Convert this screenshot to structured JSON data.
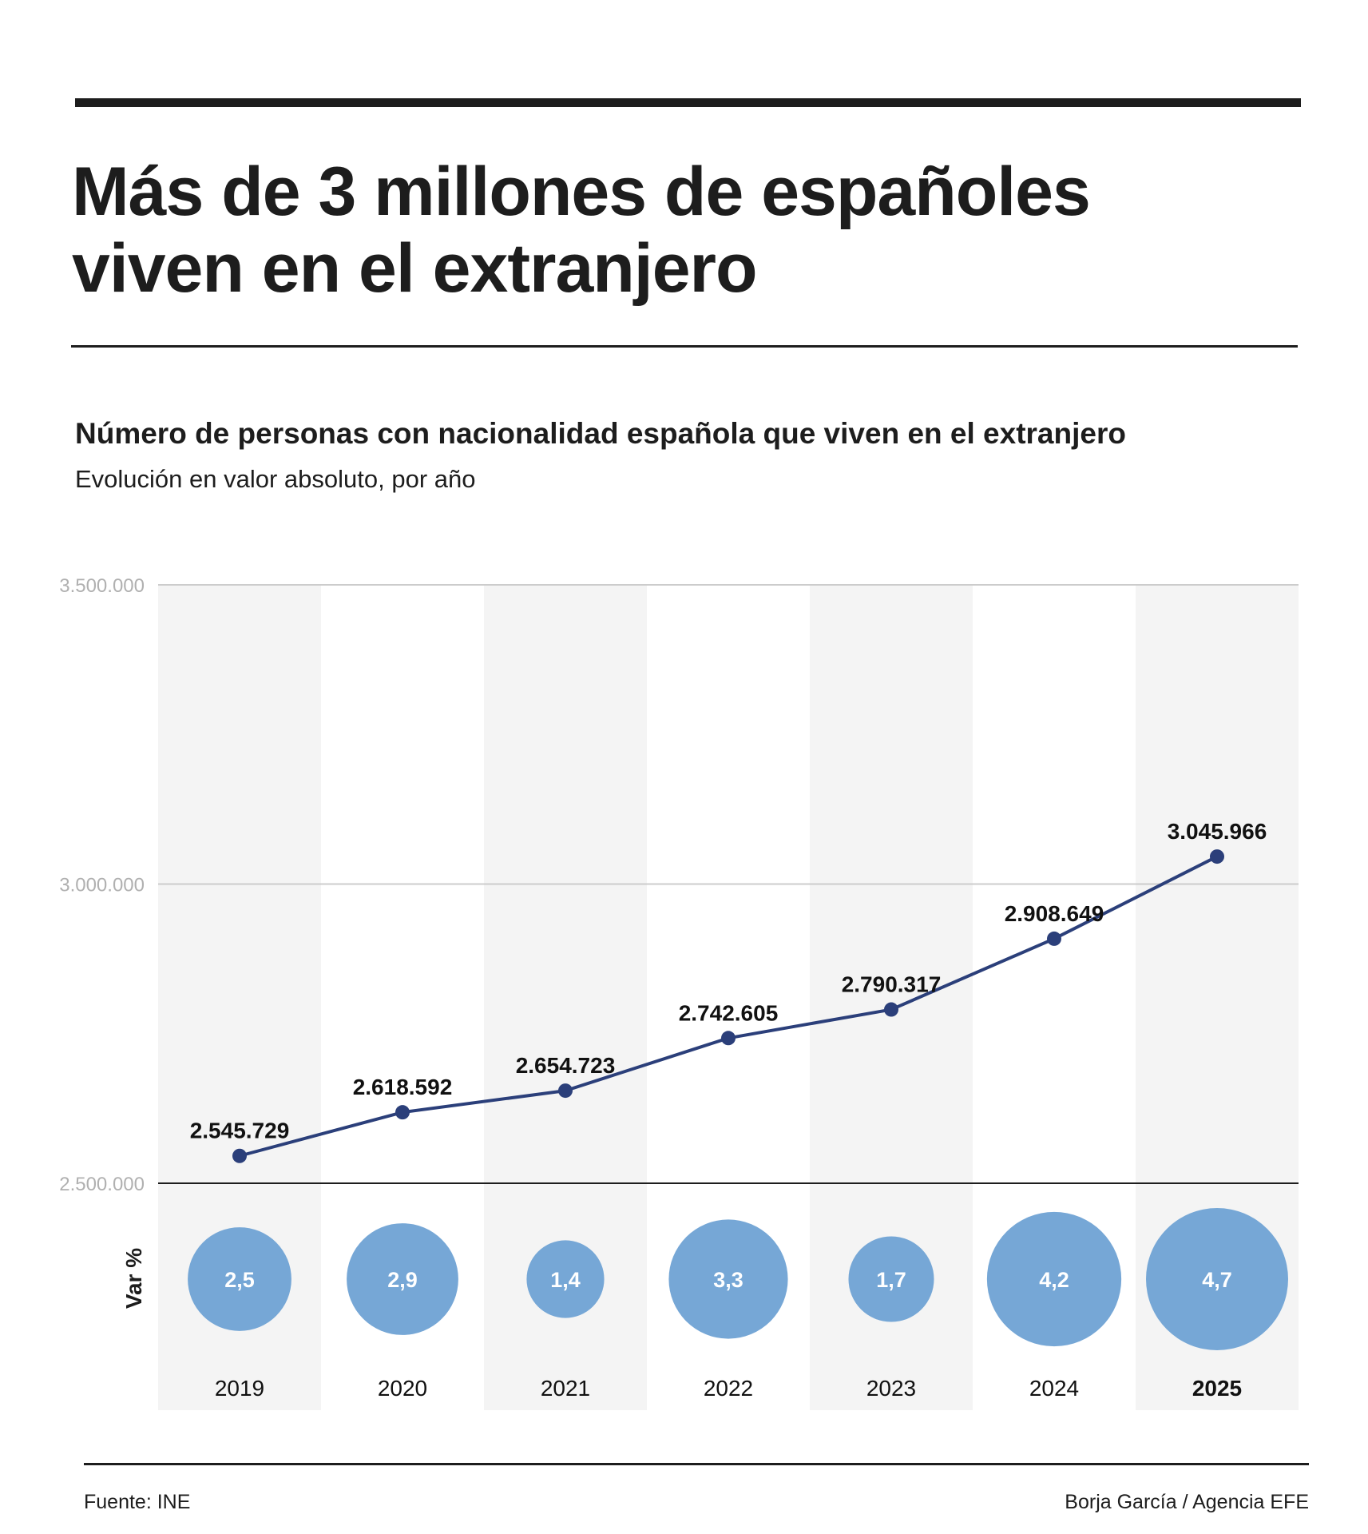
{
  "header": {
    "title_line1": "Más de 3 millones de españoles",
    "title_line2": "viven en el extranjero"
  },
  "chart_data": {
    "type": "line",
    "title": "Número de personas con nacionalidad española que viven en el extranjero",
    "subtitle": "Evolución en valor absoluto, por año",
    "xlabel": "",
    "ylabel": "",
    "categories": [
      "2019",
      "2020",
      "2021",
      "2022",
      "2023",
      "2024",
      "2025"
    ],
    "highlighted_category": "2025",
    "series": [
      {
        "name": "Personas",
        "values": [
          2545729,
          2618592,
          2654723,
          2742605,
          2790317,
          2908649,
          3045966
        ],
        "labels": [
          "2.545.729",
          "2.618.592",
          "2.654.723",
          "2.742.605",
          "2.790.317",
          "2.908.649",
          "3.045.966"
        ]
      },
      {
        "name": "Var %",
        "type": "bubble",
        "values": [
          2.5,
          2.9,
          1.4,
          3.3,
          1.7,
          4.2,
          4.7
        ],
        "labels": [
          "2,5",
          "2,9",
          "1,4",
          "3,3",
          "1,7",
          "4,2",
          "4,7"
        ]
      }
    ],
    "ylim": [
      2500000,
      3500000
    ],
    "yticks": [
      2500000,
      3000000,
      3500000
    ],
    "ytick_labels": [
      "2.500.000",
      "3.000.000",
      "3.500.000"
    ],
    "bubble_row_label": "Var %",
    "grid": true,
    "alternating_column_shading": true,
    "colors": {
      "line": "#2b3f7a",
      "bubble": "#76a7d6",
      "column_shade": "#f4f4f4",
      "gridline": "#cccccc",
      "baseline": "#1d1d1d",
      "tick_label": "#b0b0b0"
    }
  },
  "footer": {
    "source": "Fuente: INE",
    "credit": "Borja García / Agencia EFE"
  }
}
